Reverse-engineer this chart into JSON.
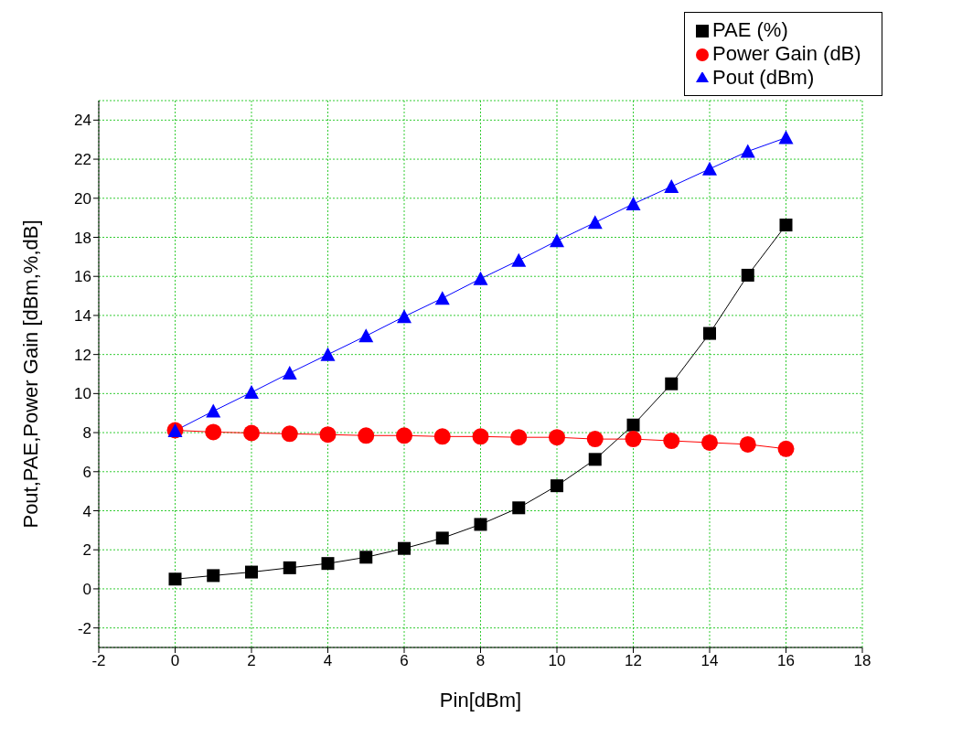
{
  "chart_data": {
    "type": "line",
    "xlabel": "Pin[dBm]",
    "ylabel": "Pout,PAE,Power Gain [dBm,%,dB]",
    "x": [
      0,
      1,
      2,
      3,
      4,
      5,
      6,
      7,
      8,
      9,
      10,
      11,
      12,
      13,
      14,
      15,
      16
    ],
    "series": [
      {
        "name": "PAE (%)",
        "color": "#000000",
        "marker": "square",
        "values": [
          0.5,
          0.68,
          0.86,
          1.08,
          1.3,
          1.62,
          2.07,
          2.6,
          3.3,
          4.15,
          5.28,
          6.63,
          8.39,
          10.5,
          13.08,
          16.06,
          18.63
        ]
      },
      {
        "name": "Power Gain (dB)",
        "color": "#ff0000",
        "marker": "circle",
        "values": [
          8.12,
          8.03,
          7.98,
          7.94,
          7.9,
          7.85,
          7.85,
          7.8,
          7.8,
          7.76,
          7.76,
          7.67,
          7.67,
          7.58,
          7.49,
          7.4,
          7.17
        ]
      },
      {
        "name": "Pout (dBm)",
        "color": "#0000ff",
        "marker": "triangle",
        "values": [
          8.1,
          9.1,
          10.06,
          11.05,
          12.0,
          12.95,
          13.94,
          14.88,
          15.88,
          16.82,
          17.82,
          18.76,
          19.71,
          20.6,
          21.5,
          22.4,
          23.1
        ]
      }
    ],
    "xlim": [
      -2,
      18
    ],
    "xticks": [
      -2,
      0,
      2,
      4,
      6,
      8,
      10,
      12,
      14,
      16,
      18
    ],
    "ylim": [
      -3,
      25
    ],
    "yticks": [
      -2,
      0,
      2,
      4,
      6,
      8,
      10,
      12,
      14,
      16,
      18,
      20,
      22,
      24
    ],
    "grid": true,
    "legend": "top right",
    "line_style": "solid"
  }
}
